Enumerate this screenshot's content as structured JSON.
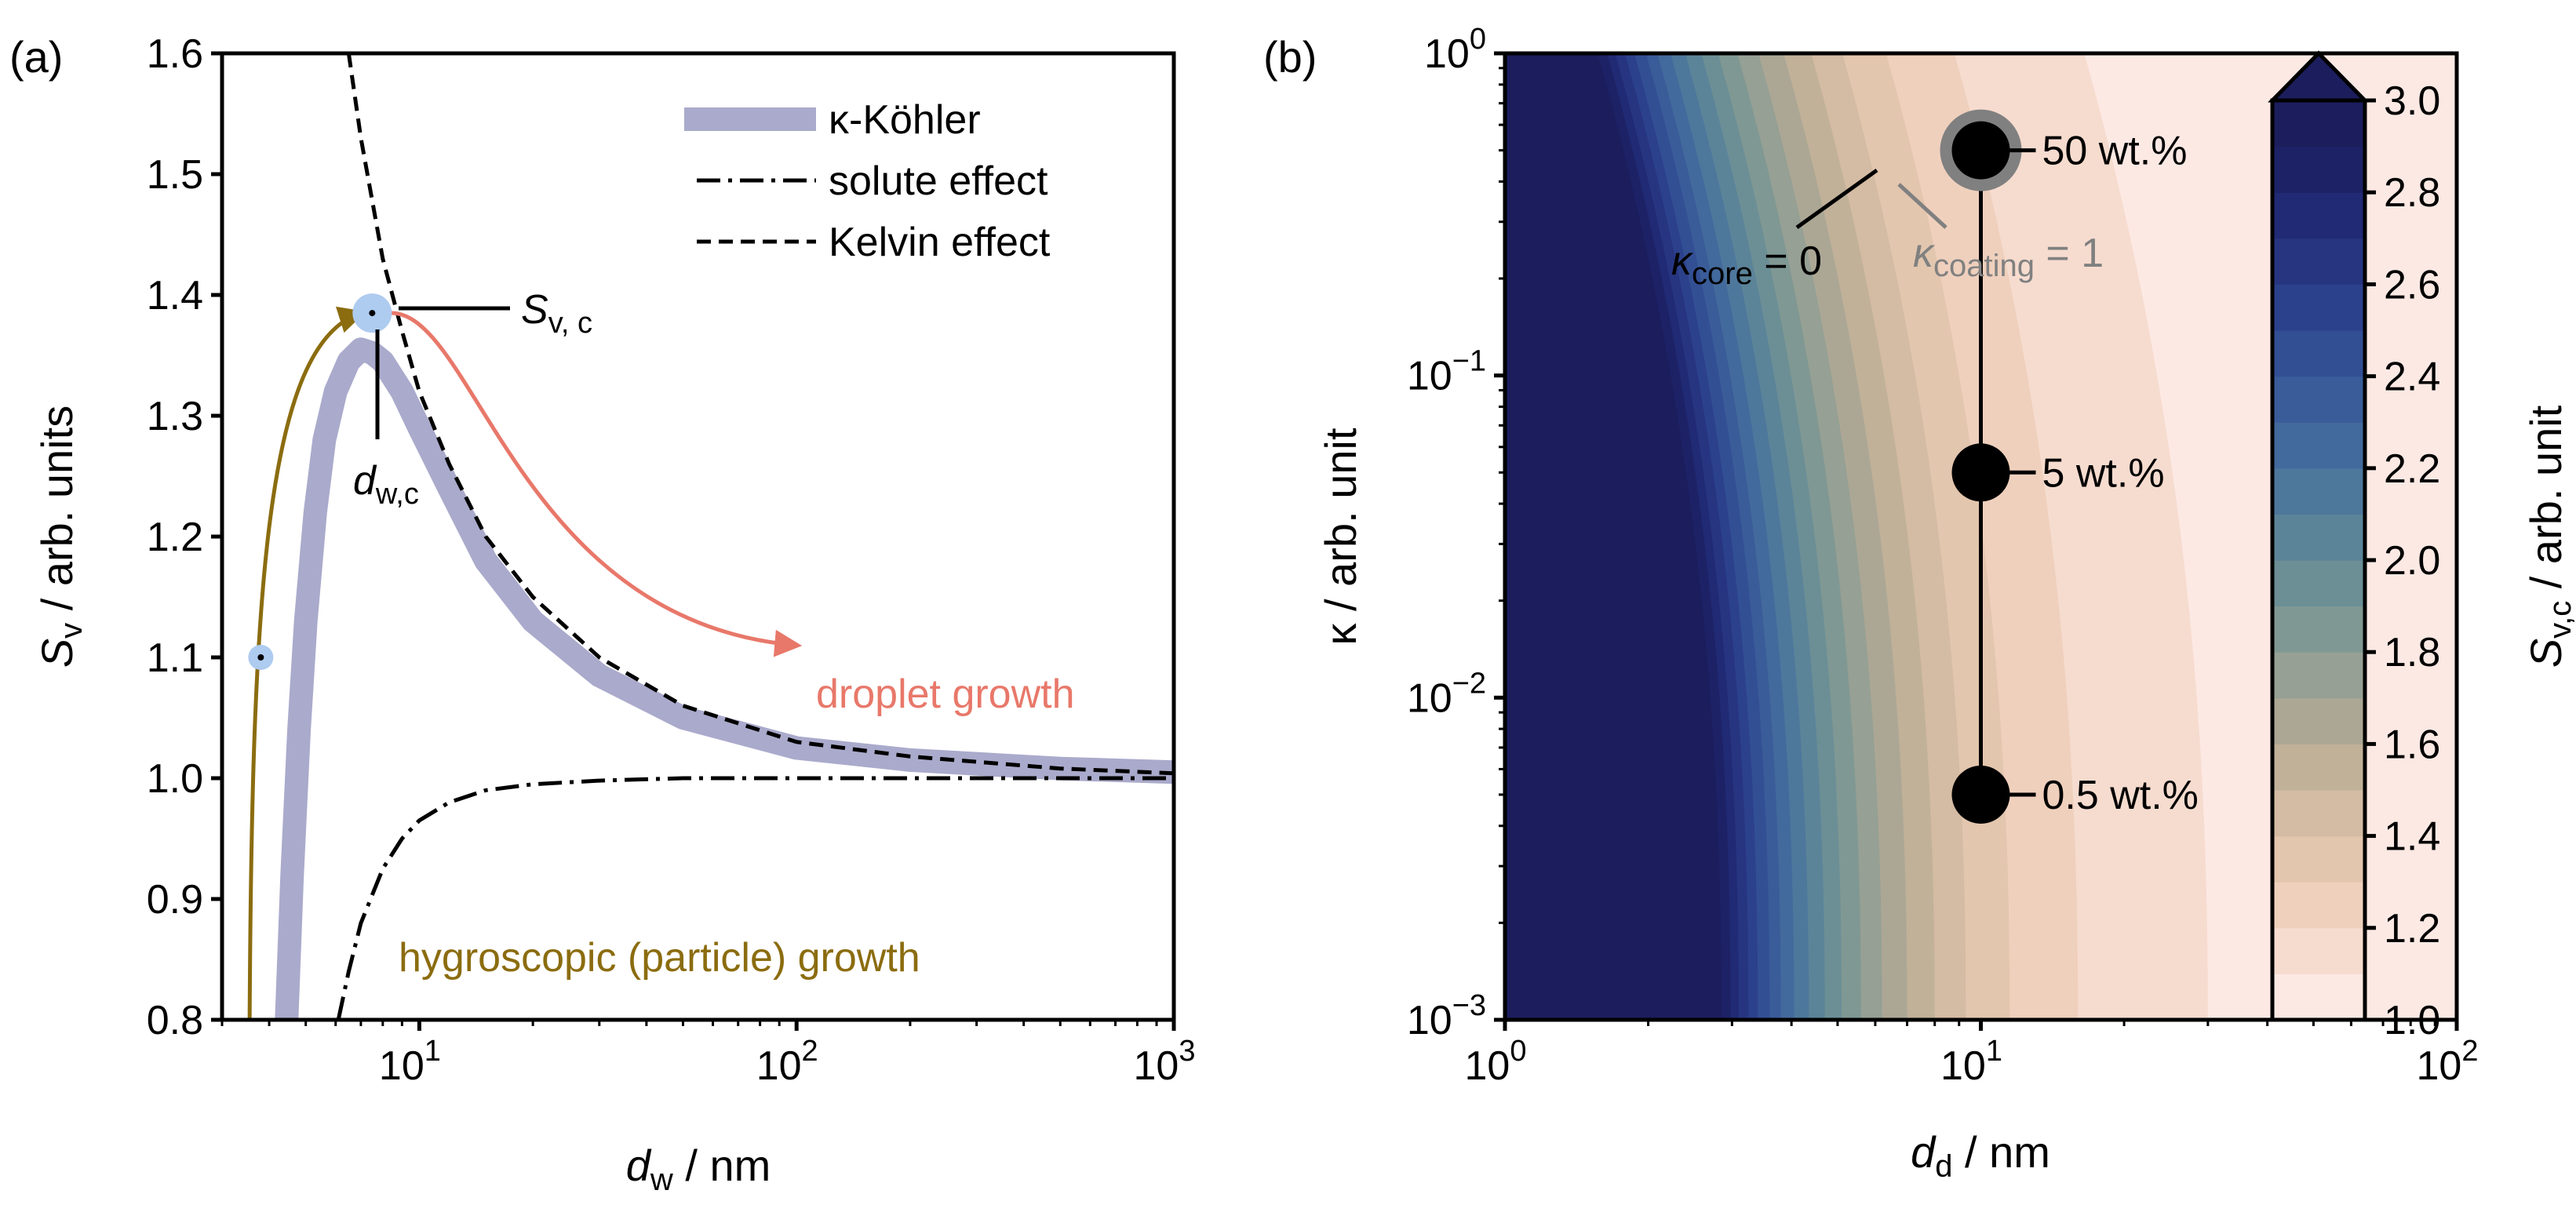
{
  "panels": {
    "a": "(a)",
    "b": "(b)"
  },
  "chart_data": [
    {
      "type": "line",
      "panel": "(a)",
      "xlabel": {
        "sym": "d",
        "sub": "w",
        "unit": " / nm"
      },
      "ylabel": {
        "sym": "S",
        "sub": "v",
        "unit": " / arb. units"
      },
      "xscale": "log",
      "xlim": [
        3,
        1000
      ],
      "ylim": [
        0.8,
        1.6
      ],
      "yticks": [
        "0.8",
        "0.9",
        "1.0",
        "1.1",
        "1.2",
        "1.3",
        "1.4",
        "1.5",
        "1.6"
      ],
      "xticks": [
        {
          "base": "10",
          "exp": "1"
        },
        {
          "base": "10",
          "exp": "2"
        },
        {
          "base": "10",
          "exp": "3"
        }
      ],
      "grid": false,
      "legend_position": "top-right",
      "series": [
        {
          "name": "κ-Köhler",
          "color": "#aaaacc",
          "style": "thick",
          "x": [
            4.45,
            4.6,
            4.8,
            5.0,
            5.3,
            5.6,
            6.0,
            6.5,
            7.0,
            7.5,
            8.0,
            9.0,
            10,
            12,
            15,
            20,
            30,
            50,
            100,
            200,
            500,
            1000
          ],
          "y": [
            0.8,
            0.92,
            1.04,
            1.13,
            1.22,
            1.28,
            1.32,
            1.345,
            1.355,
            1.352,
            1.345,
            1.32,
            1.29,
            1.24,
            1.18,
            1.13,
            1.085,
            1.05,
            1.025,
            1.015,
            1.008,
            1.005
          ]
        },
        {
          "name": "solute effect",
          "color": "#000000",
          "style": "dashdot",
          "x": [
            6.1,
            6.5,
            7,
            8,
            9,
            10,
            12,
            15,
            20,
            30,
            50,
            100,
            300,
            1000
          ],
          "y": [
            0.8,
            0.84,
            0.88,
            0.925,
            0.95,
            0.965,
            0.98,
            0.99,
            0.995,
            0.998,
            1.0,
            1.0,
            1.0,
            1.0
          ]
        },
        {
          "name": "Kelvin effect",
          "color": "#000000",
          "style": "dashed",
          "x": [
            6.5,
            7,
            8,
            9,
            10,
            12,
            15,
            20,
            30,
            50,
            100,
            200,
            500,
            1000
          ],
          "y": [
            1.6,
            1.53,
            1.43,
            1.37,
            1.32,
            1.26,
            1.2,
            1.15,
            1.1,
            1.06,
            1.03,
            1.018,
            1.008,
            1.004
          ]
        }
      ],
      "annotations": {
        "critical_point": {
          "x": 7.5,
          "y": 1.385
        },
        "sv_c_label": {
          "sym": "S",
          "sub": "v, c"
        },
        "dw_c_label": {
          "sym": "d",
          "sub": "w,c"
        },
        "start_point": {
          "x": 3.8,
          "y": 1.1
        },
        "hygroscopic_growth": {
          "text": "hygroscopic (particle) growth",
          "color": "#8b6c0f"
        },
        "droplet_growth": {
          "text": "droplet growth",
          "color": "#e8786a"
        }
      }
    },
    {
      "type": "heatmap",
      "panel": "(b)",
      "xlabel": {
        "sym": "d",
        "sub": "d",
        "unit": " / nm"
      },
      "ylabel": "κ / arb. unit",
      "xscale": "log",
      "yscale": "log",
      "xlim": [
        1,
        100
      ],
      "ylim": [
        0.001,
        1
      ],
      "xticks": [
        {
          "base": "10",
          "exp": "0"
        },
        {
          "base": "10",
          "exp": "1"
        },
        {
          "base": "10",
          "exp": "2"
        }
      ],
      "yticks": [
        {
          "base": "10",
          "exp": "−3"
        },
        {
          "base": "10",
          "exp": "−2"
        },
        {
          "base": "10",
          "exp": "−1"
        },
        {
          "base": "10",
          "exp": "0"
        }
      ],
      "colorbar": {
        "label": {
          "sym": "S",
          "sub": "v,c",
          "unit": " / arb. unit"
        },
        "range": [
          1.0,
          3.0
        ],
        "ticks": [
          "1.0",
          "1.2",
          "1.4",
          "1.6",
          "1.8",
          "2.0",
          "2.2",
          "2.4",
          "2.6",
          "2.8",
          "3.0"
        ],
        "extend": "max",
        "colors": [
          "#fde9e4",
          "#f6dccf",
          "#efd0bd",
          "#e3c6ae",
          "#d4bba3",
          "#c1b199",
          "#aca795",
          "#96a094",
          "#809893",
          "#6c8f96",
          "#5b8499",
          "#4e779c",
          "#436a9c",
          "#3a5c99",
          "#334f94",
          "#2c418c",
          "#273581",
          "#212a74",
          "#1d2266",
          "#1b1d5d"
        ]
      },
      "markers": [
        {
          "x": 10,
          "y": 0.5,
          "label": "50 wt.%",
          "coating": true
        },
        {
          "x": 10,
          "y": 0.05,
          "label": "5 wt.%"
        },
        {
          "x": 10,
          "y": 0.005,
          "label": "0.5 wt.%"
        }
      ],
      "kappa_core": {
        "sym": "κ",
        "sub": "core",
        "rest": " = 0"
      },
      "kappa_coating": {
        "sym": "κ",
        "sub": "coating",
        "rest": " = 1",
        "color": "#808080"
      }
    }
  ]
}
